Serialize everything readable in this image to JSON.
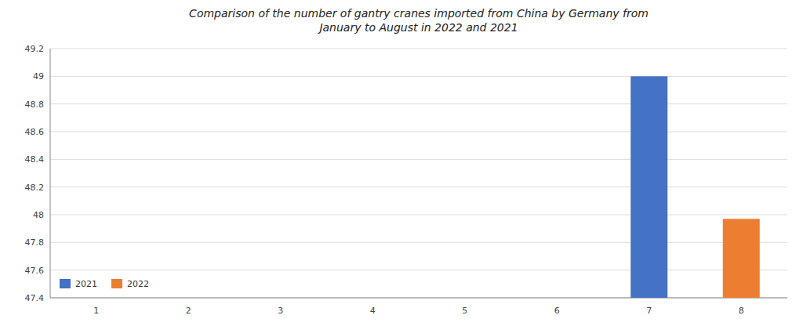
{
  "chart_data": {
    "type": "bar",
    "title": "Comparison of the number of gantry cranes imported from China by Germany from\nJanuary to August in 2022 and 2021",
    "categories": [
      "1",
      "2",
      "3",
      "4",
      "5",
      "6",
      "7",
      "8"
    ],
    "series": [
      {
        "name": "2021",
        "color": "#4472C4",
        "values": [
          null,
          null,
          null,
          null,
          null,
          null,
          49.0,
          null
        ]
      },
      {
        "name": "2022",
        "color": "#ED7D31",
        "values": [
          null,
          null,
          null,
          null,
          null,
          null,
          null,
          47.97
        ]
      }
    ],
    "ylim": [
      47.4,
      49.2
    ],
    "yticks": [
      47.4,
      47.6,
      47.8,
      48.0,
      48.2,
      48.4,
      48.6,
      48.8,
      49.0,
      49.2
    ],
    "grid": true,
    "legend": "lower left"
  }
}
